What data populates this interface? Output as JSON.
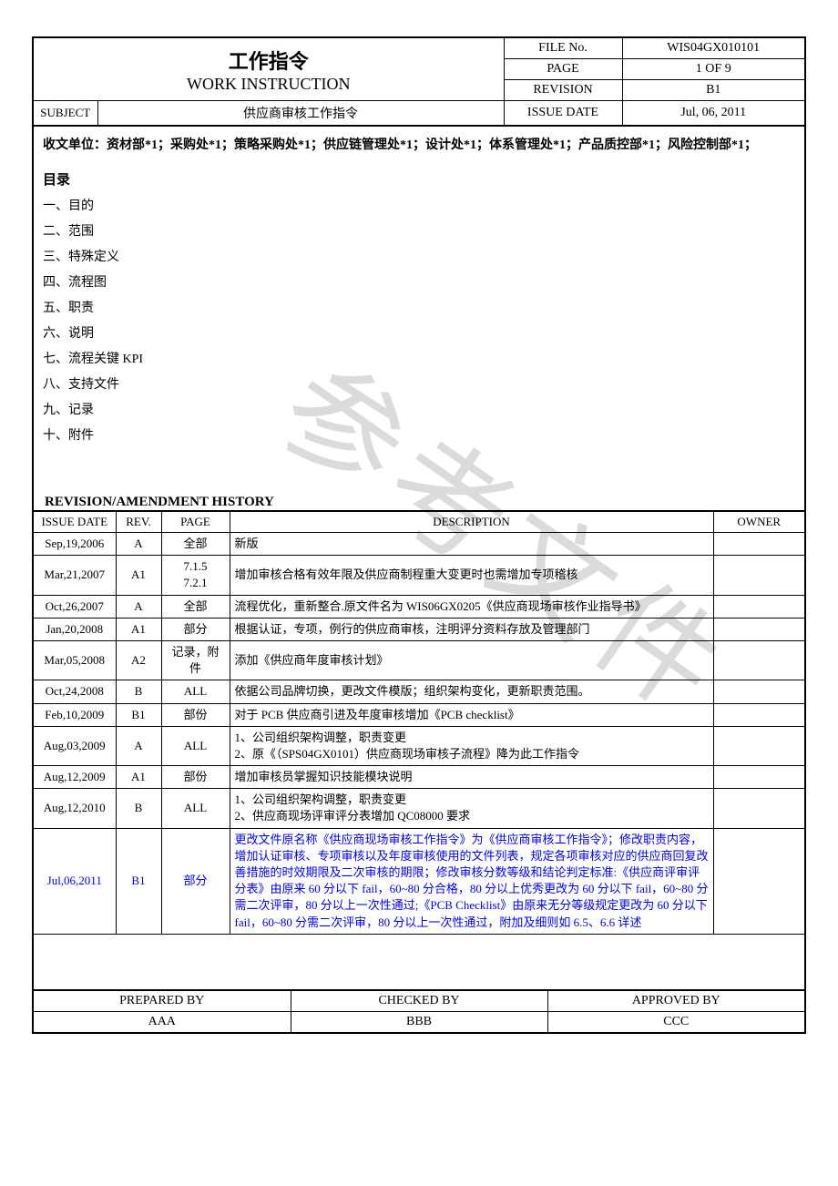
{
  "header": {
    "title_cn": "工作指令",
    "title_en": "WORK INSTRUCTION",
    "subject_label": "SUBJECT",
    "subject_value": "供应商审核工作指令",
    "meta": [
      {
        "label": "FILE No.",
        "value": "WIS04GX010101"
      },
      {
        "label": "PAGE",
        "value": "1 OF 9"
      },
      {
        "label": "REVISION",
        "value": "B1"
      },
      {
        "label": "ISSUE DATE",
        "value": "Jul, 06, 2011"
      }
    ]
  },
  "distribution": "收文单位：资材部*1；采购处*1；策略采购处*1；供应链管理处*1；设计处*1；体系管理处*1；产品质控部*1；风险控制部*1；",
  "toc": {
    "title": "目录",
    "items": [
      "一、目的",
      "二、范围",
      "三、特殊定义",
      "四、流程图",
      "五、职责",
      "六、说明",
      "七、流程关键 KPI",
      "八、支持文件",
      "九、记录",
      "十、附件"
    ]
  },
  "rev_section_title": "REVISION/AMENDMENT HISTORY",
  "rev_headers": {
    "date": "ISSUE DATE",
    "rev": "REV.",
    "page": "PAGE",
    "desc": "DESCRIPTION",
    "owner": "OWNER"
  },
  "revisions": [
    {
      "date": "Sep,19,2006",
      "rev": "A",
      "page": "全部",
      "desc": "新版",
      "owner": ""
    },
    {
      "date": "Mar,21,2007",
      "rev": "A1",
      "page": "7.1.5\n7.2.1",
      "desc": "增加审核合格有效年限及供应商制程重大变更时也需增加专项稽核",
      "owner": ""
    },
    {
      "date": "Oct,26,2007",
      "rev": "A",
      "page": "全部",
      "desc": "流程优化，重新整合.原文件名为 WIS06GX0205《供应商现场审核作业指导书》",
      "owner": ""
    },
    {
      "date": "Jan,20,2008",
      "rev": "A1",
      "page": "部分",
      "desc": "根据认证，专项，例行的供应商审核，注明评分资料存放及管理部门",
      "owner": ""
    },
    {
      "date": "Mar,05,2008",
      "rev": "A2",
      "page": "记录，附件",
      "desc": "添加《供应商年度审核计划》",
      "owner": ""
    },
    {
      "date": "Oct,24,2008",
      "rev": "B",
      "page": "ALL",
      "desc": "依据公司品牌切换，更改文件模版；组织架构变化，更新职责范围。",
      "owner": ""
    },
    {
      "date": "Feb,10,2009",
      "rev": "B1",
      "page": "部份",
      "desc": "对于 PCB 供应商引进及年度审核增加《PCB checklist》",
      "owner": ""
    },
    {
      "date": "Aug,03,2009",
      "rev": "A",
      "page": "ALL",
      "desc": "1、公司组织架构调整，职责变更\n2、原《（SPS04GX0101）供应商现场审核子流程》降为此工作指令",
      "owner": ""
    },
    {
      "date": "Aug,12,2009",
      "rev": "A1",
      "page": "部份",
      "desc": "增加审核员掌握知识技能模块说明",
      "owner": ""
    },
    {
      "date": "Aug,12,2010",
      "rev": "B",
      "page": "ALL",
      "desc": "1、公司组织架构调整，职责变更\n2、供应商现场评审评分表增加 QC08000 要求",
      "owner": ""
    },
    {
      "date": "Jul,06,2011",
      "rev": "B1",
      "page": "部分",
      "desc": "更改文件原名称《供应商现场审核工作指令》为《供应商审核工作指令》；修改职责内容，增加认证审核、专项审核以及年度审核使用的文件列表，规定各项审核对应的供应商回复改善措施的时效期限及二次审核的期限；修改审核分数等级和结论判定标准:《供应商评审评分表》由原来 60 分以下 fail，60~80 分合格，80 分以上优秀更改为 60 分以下 fail，60~80 分需二次评审，80 分以上一次性通过;《PCB Checklist》由原来无分等级规定更改为 60 分以下 fail，60~80 分需二次评审，80 分以上一次性通过，附加及细则如 6.5、6.6 详述",
      "owner": "",
      "blue": true
    }
  ],
  "footer": {
    "headers": [
      "PREPARED BY",
      "CHECKED BY",
      "APPROVED BY"
    ],
    "values": [
      "AAA",
      "BBB",
      "CCC"
    ]
  },
  "watermark": "参考文件"
}
